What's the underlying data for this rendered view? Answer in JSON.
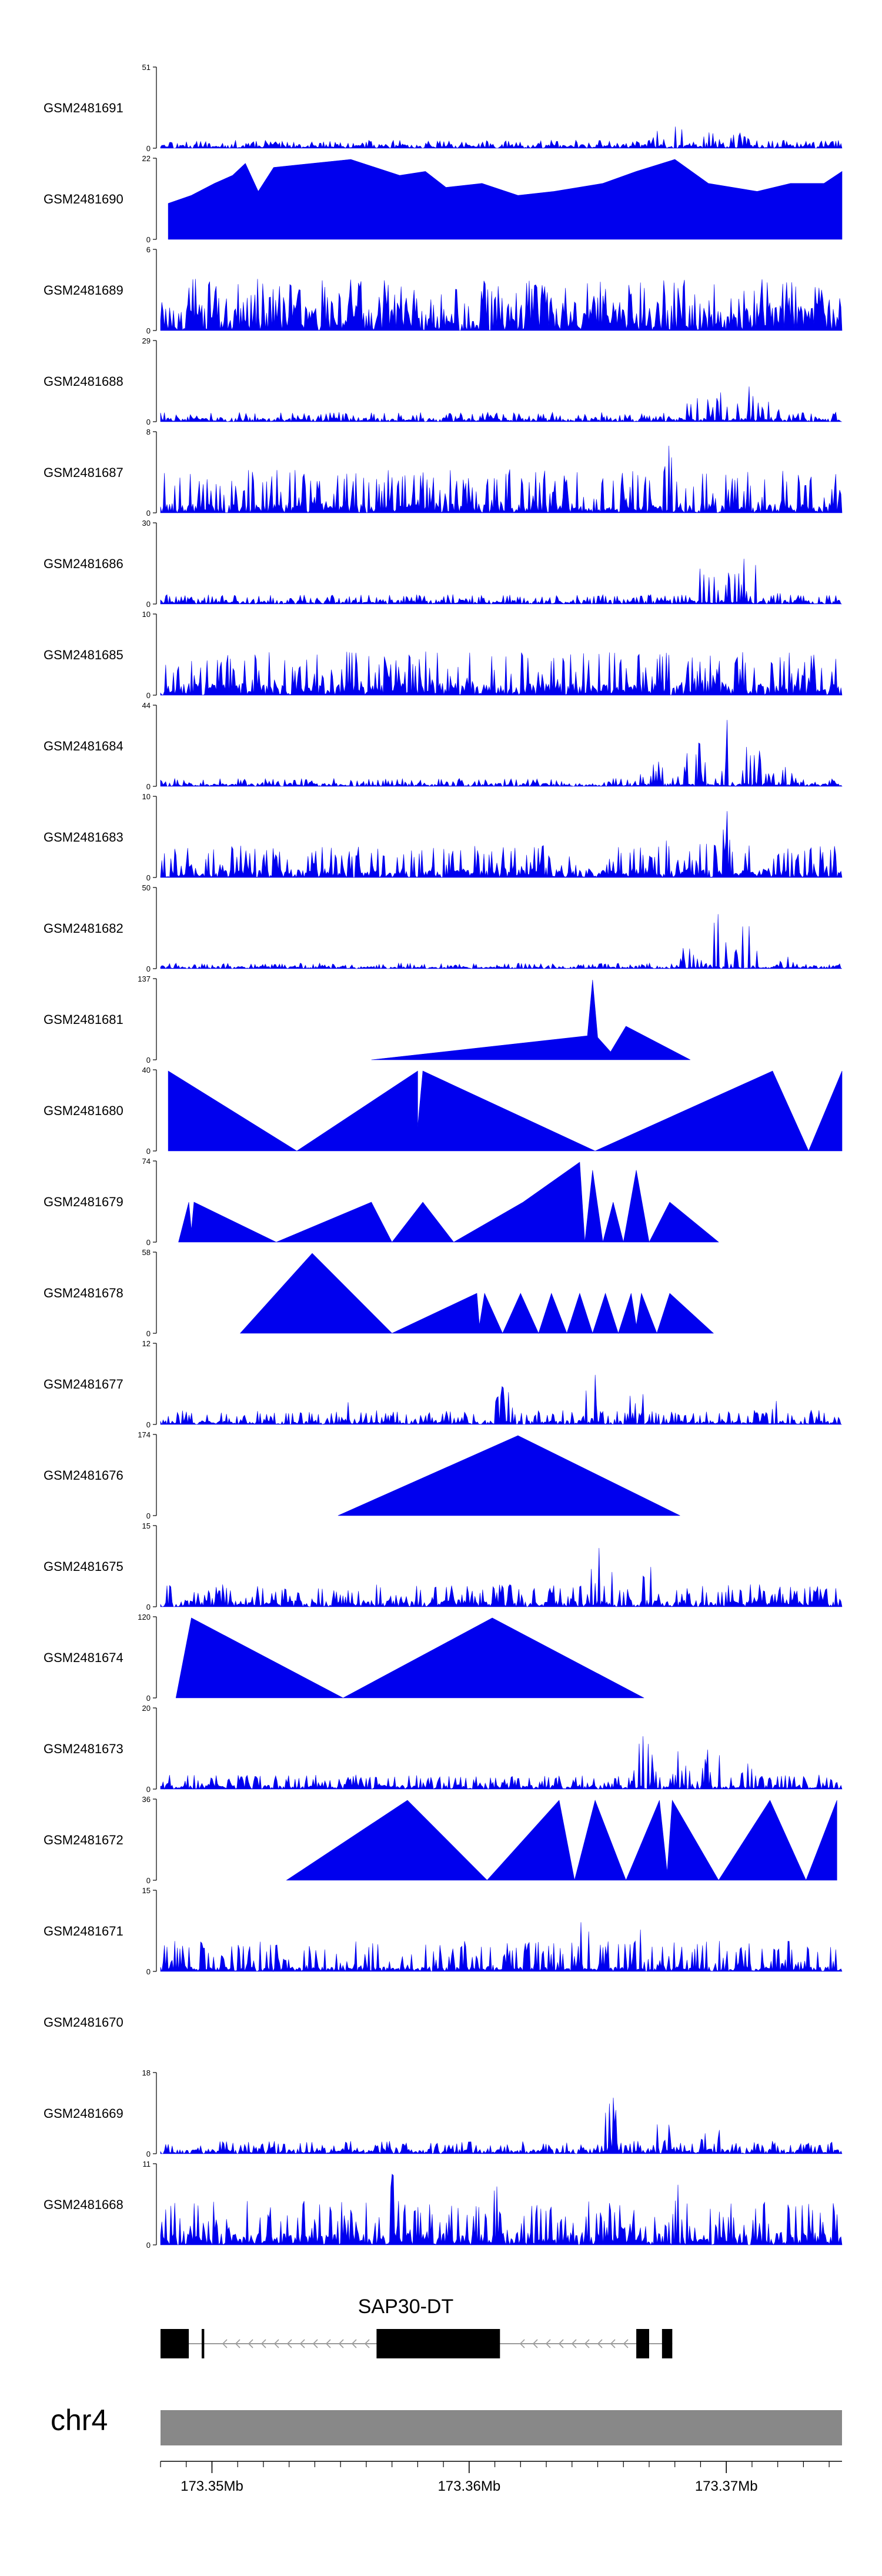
{
  "chart_data": {
    "type": "area",
    "title": "",
    "chromosome": "chr4",
    "region_start": 173.348,
    "region_end": 173.3745,
    "xlim": [
      173.348,
      173.3745
    ],
    "x_unit": "Mb",
    "x_ticks": [
      {
        "value": 173.35,
        "label": "173.35Mb"
      },
      {
        "value": 173.36,
        "label": "173.36Mb"
      },
      {
        "value": 173.37,
        "label": "173.37Mb"
      }
    ],
    "tracks": [
      {
        "name": "GSM2481691",
        "ymax": 51,
        "ymin_label": "0",
        "ymax_label": "51",
        "style": "dense",
        "base": 0.05,
        "noise": 0.1,
        "hotspots": [
          [
            173.3674,
            1.0,
            0.00012
          ],
          [
            173.3682,
            0.4,
            0.0003
          ],
          [
            173.3695,
            0.25,
            0.0004
          ],
          [
            173.3705,
            0.2,
            0.0005
          ]
        ],
        "seed": 11
      },
      {
        "name": "GSM2481690",
        "ymax": 22,
        "ymin_label": "0",
        "ymax_label": "22",
        "style": "triangles",
        "peaks": [
          [
            173.3483,
            0.45
          ],
          [
            173.3492,
            0.55
          ],
          [
            173.3501,
            0.7
          ],
          [
            173.3508,
            0.8
          ],
          [
            173.3513,
            0.95
          ],
          [
            173.3518,
            0.6
          ],
          [
            173.3524,
            0.9
          ],
          [
            173.3554,
            1.0
          ],
          [
            173.3573,
            0.8
          ],
          [
            173.3583,
            0.85
          ],
          [
            173.3591,
            0.65
          ],
          [
            173.3605,
            0.7
          ],
          [
            173.3619,
            0.55
          ],
          [
            173.3633,
            0.6
          ],
          [
            173.3652,
            0.7
          ],
          [
            173.3665,
            0.85
          ],
          [
            173.368,
            1.0
          ],
          [
            173.3693,
            0.7
          ],
          [
            173.3712,
            0.6
          ],
          [
            173.3725,
            0.7
          ],
          [
            173.3738,
            0.7
          ],
          [
            173.3745,
            0.85
          ]
        ]
      },
      {
        "name": "GSM2481689",
        "ymax": 6,
        "ymin_label": "0",
        "ymax_label": "6",
        "style": "dense",
        "base": 0.35,
        "noise": 0.65,
        "hotspots": [],
        "seed": 23
      },
      {
        "name": "GSM2481688",
        "ymax": 29,
        "ymin_label": "0",
        "ymax_label": "29",
        "style": "dense",
        "base": 0.05,
        "noise": 0.12,
        "hotspots": [
          [
            173.3689,
            0.45,
            0.0004
          ],
          [
            173.3698,
            0.95,
            0.0002
          ],
          [
            173.3707,
            0.6,
            0.0004
          ],
          [
            173.3716,
            0.3,
            0.0004
          ]
        ],
        "seed": 31
      },
      {
        "name": "GSM2481687",
        "ymax": 8,
        "ymin_label": "0",
        "ymax_label": "8",
        "style": "dense",
        "base": 0.12,
        "noise": 0.55,
        "hotspots": [
          [
            173.3678,
            0.9,
            0.0002
          ],
          [
            173.3698,
            0.6,
            0.0004
          ]
        ],
        "seed": 37
      },
      {
        "name": "GSM2481686",
        "ymax": 30,
        "ymin_label": "0",
        "ymax_label": "30",
        "style": "dense",
        "base": 0.05,
        "noise": 0.12,
        "hotspots": [
          [
            173.3692,
            0.55,
            0.0004
          ],
          [
            173.3701,
            0.95,
            0.0002
          ],
          [
            173.3708,
            0.7,
            0.0004
          ],
          [
            173.3717,
            0.25,
            0.0004
          ]
        ],
        "seed": 41
      },
      {
        "name": "GSM2481685",
        "ymax": 10,
        "ymin_label": "0",
        "ymax_label": "10",
        "style": "dense",
        "base": 0.15,
        "noise": 0.55,
        "hotspots": [
          [
            173.3675,
            0.6,
            0.0006
          ],
          [
            173.37,
            0.5,
            0.0008
          ]
        ],
        "seed": 43
      },
      {
        "name": "GSM2481684",
        "ymax": 44,
        "ymin_label": "0",
        "ymax_label": "44",
        "style": "dense",
        "base": 0.04,
        "noise": 0.1,
        "hotspots": [
          [
            173.3672,
            0.35,
            0.0005
          ],
          [
            173.3688,
            0.6,
            0.0004
          ],
          [
            173.37,
            1.0,
            0.00015
          ],
          [
            173.371,
            0.55,
            0.0005
          ],
          [
            173.3722,
            0.25,
            0.0004
          ]
        ],
        "seed": 47
      },
      {
        "name": "GSM2481683",
        "ymax": 10,
        "ymin_label": "0",
        "ymax_label": "10",
        "style": "dense",
        "base": 0.1,
        "noise": 0.4,
        "hotspots": [
          [
            173.3676,
            0.55,
            0.0004
          ],
          [
            173.3693,
            0.75,
            0.0005
          ],
          [
            173.37,
            0.95,
            0.0002
          ],
          [
            173.3715,
            0.6,
            0.0005
          ]
        ],
        "seed": 53
      },
      {
        "name": "GSM2481682",
        "ymax": 50,
        "ymin_label": "0",
        "ymax_label": "50",
        "style": "dense",
        "base": 0.03,
        "noise": 0.07,
        "hotspots": [
          [
            173.3685,
            0.3,
            0.0004
          ],
          [
            173.3697,
            0.95,
            0.0002
          ],
          [
            173.3708,
            0.7,
            0.0003
          ],
          [
            173.3722,
            0.2,
            0.0004
          ]
        ],
        "seed": 59
      },
      {
        "name": "GSM2481681",
        "ymax": 137,
        "ymin_label": "0",
        "ymax_label": "137",
        "style": "triangles",
        "peaks": [
          [
            173.3562,
            0.0
          ],
          [
            173.3646,
            0.3
          ],
          [
            173.3648,
            1.0
          ],
          [
            173.365,
            0.28
          ],
          [
            173.3655,
            0.1
          ],
          [
            173.3661,
            0.42
          ],
          [
            173.3686,
            0.0
          ]
        ]
      },
      {
        "name": "GSM2481680",
        "ymax": 40,
        "ymin_label": "0",
        "ymax_label": "40",
        "style": "triangles",
        "peaks": [
          [
            173.3483,
            1.0
          ],
          [
            173.3533,
            0.0
          ],
          [
            173.358,
            1.0
          ],
          [
            173.358,
            0.3
          ],
          [
            173.3582,
            1.0
          ],
          [
            173.3649,
            0.0
          ],
          [
            173.3718,
            1.0
          ],
          [
            173.3732,
            0.0
          ],
          [
            173.3745,
            1.0
          ]
        ]
      },
      {
        "name": "GSM2481679",
        "ymax": 74,
        "ymin_label": "0",
        "ymax_label": "74",
        "style": "triangles",
        "peaks": [
          [
            173.3487,
            0.0
          ],
          [
            173.3491,
            0.5
          ],
          [
            173.3492,
            0.15
          ],
          [
            173.3493,
            0.5
          ],
          [
            173.3525,
            0.0
          ],
          [
            173.3562,
            0.5
          ],
          [
            173.357,
            0.0
          ],
          [
            173.3582,
            0.5
          ],
          [
            173.3594,
            0.0
          ],
          [
            173.3621,
            0.5
          ],
          [
            173.3643,
            1.0
          ],
          [
            173.3645,
            0.0
          ],
          [
            173.3648,
            0.9
          ],
          [
            173.3652,
            0.0
          ],
          [
            173.3656,
            0.5
          ],
          [
            173.366,
            0.0
          ],
          [
            173.3665,
            0.9
          ],
          [
            173.367,
            0.0
          ],
          [
            173.3678,
            0.5
          ],
          [
            173.3697,
            0.0
          ]
        ]
      },
      {
        "name": "GSM2481678",
        "ymax": 58,
        "ymin_label": "0",
        "ymax_label": "58",
        "style": "triangles",
        "peaks": [
          [
            173.3511,
            0.0
          ],
          [
            173.3539,
            1.0
          ],
          [
            173.357,
            0.0
          ],
          [
            173.3603,
            0.5
          ],
          [
            173.3604,
            0.1
          ],
          [
            173.3606,
            0.5
          ],
          [
            173.3613,
            0.0
          ],
          [
            173.362,
            0.5
          ],
          [
            173.3627,
            0.0
          ],
          [
            173.3632,
            0.5
          ],
          [
            173.3638,
            0.0
          ],
          [
            173.3643,
            0.5
          ],
          [
            173.3648,
            0.0
          ],
          [
            173.3653,
            0.5
          ],
          [
            173.3658,
            0.0
          ],
          [
            173.3663,
            0.5
          ],
          [
            173.3665,
            0.1
          ],
          [
            173.3667,
            0.5
          ],
          [
            173.3673,
            0.0
          ],
          [
            173.3678,
            0.5
          ],
          [
            173.3695,
            0.0
          ]
        ]
      },
      {
        "name": "GSM2481677",
        "ymax": 12,
        "ymin_label": "0",
        "ymax_label": "12",
        "style": "dense",
        "base": 0.05,
        "noise": 0.18,
        "hotspots": [
          [
            173.3552,
            0.3,
            0.0003
          ],
          [
            173.3613,
            0.55,
            0.0003
          ],
          [
            173.3648,
            1.0,
            0.0002
          ],
          [
            173.3665,
            0.5,
            0.0004
          ],
          [
            173.372,
            0.3,
            0.0003
          ]
        ],
        "seed": 61
      },
      {
        "name": "GSM2481676",
        "ymax": 174,
        "ymin_label": "0",
        "ymax_label": "174",
        "style": "triangles",
        "peaks": [
          [
            173.3549,
            0.0
          ],
          [
            173.3619,
            1.0
          ],
          [
            173.3682,
            0.0
          ]
        ]
      },
      {
        "name": "GSM2481675",
        "ymax": 15,
        "ymin_label": "0",
        "ymax_label": "15",
        "style": "dense",
        "base": 0.08,
        "noise": 0.28,
        "hotspots": [
          [
            173.3649,
            0.95,
            0.0003
          ],
          [
            173.3655,
            0.6,
            0.0004
          ],
          [
            173.367,
            0.55,
            0.0003
          ],
          [
            173.369,
            0.3,
            0.0004
          ]
        ],
        "seed": 67
      },
      {
        "name": "GSM2481674",
        "ymax": 120,
        "ymin_label": "0",
        "ymax_label": "120",
        "style": "triangles",
        "peaks": [
          [
            173.3486,
            0.0
          ],
          [
            173.3492,
            1.0
          ],
          [
            173.3551,
            0.0
          ],
          [
            173.3609,
            1.0
          ],
          [
            173.3668,
            0.0
          ]
        ]
      },
      {
        "name": "GSM2481673",
        "ymax": 20,
        "ymin_label": "0",
        "ymax_label": "20",
        "style": "dense",
        "base": 0.05,
        "noise": 0.18,
        "hotspots": [
          [
            173.3668,
            0.9,
            0.0003
          ],
          [
            173.368,
            0.8,
            0.0004
          ],
          [
            173.3695,
            0.6,
            0.0004
          ],
          [
            173.371,
            0.35,
            0.0004
          ]
        ],
        "seed": 71
      },
      {
        "name": "GSM2481672",
        "ymax": 36,
        "ymin_label": "0",
        "ymax_label": "36",
        "style": "triangles",
        "peaks": [
          [
            173.3529,
            0.0
          ],
          [
            173.3576,
            1.0
          ],
          [
            173.3607,
            0.0
          ],
          [
            173.3635,
            1.0
          ],
          [
            173.3641,
            0.0
          ],
          [
            173.3649,
            1.0
          ],
          [
            173.3661,
            0.0
          ],
          [
            173.3674,
            1.0
          ],
          [
            173.3677,
            0.1
          ],
          [
            173.3679,
            1.0
          ],
          [
            173.3697,
            0.0
          ],
          [
            173.3717,
            1.0
          ],
          [
            173.3731,
            0.0
          ],
          [
            173.3743,
            1.0
          ]
        ]
      },
      {
        "name": "GSM2481671",
        "ymax": 15,
        "ymin_label": "0",
        "ymax_label": "15",
        "style": "dense",
        "base": 0.06,
        "noise": 0.38,
        "hotspots": [
          [
            173.3645,
            0.95,
            0.0002
          ],
          [
            173.3665,
            0.6,
            0.0004
          ],
          [
            173.3745,
            0.8,
            0.0002
          ]
        ],
        "seed": 73
      },
      {
        "name": "GSM2481670",
        "ymax": null,
        "ymin_label": "",
        "ymax_label": "",
        "style": "empty"
      },
      {
        "name": "GSM2481669",
        "ymax": 18,
        "ymin_label": "0",
        "ymax_label": "18",
        "style": "dense",
        "base": 0.06,
        "noise": 0.16,
        "hotspots": [
          [
            173.3655,
            0.95,
            0.0002
          ],
          [
            173.3675,
            0.55,
            0.0004
          ],
          [
            173.3695,
            0.4,
            0.0004
          ]
        ],
        "seed": 79
      },
      {
        "name": "GSM2481668",
        "ymax": 11,
        "ymin_label": "0",
        "ymax_label": "11",
        "style": "dense",
        "base": 0.15,
        "noise": 0.55,
        "hotspots": [
          [
            173.357,
            0.9,
            0.0004
          ],
          [
            173.361,
            0.8,
            0.0004
          ],
          [
            173.368,
            0.8,
            0.0004
          ]
        ],
        "seed": 83
      }
    ],
    "gene": {
      "name": "SAP30-DT",
      "strand": "-",
      "exons": [
        [
          173.348,
          173.3491
        ],
        [
          173.3496,
          173.3497
        ],
        [
          173.3564,
          173.3612
        ],
        [
          173.3665,
          173.367
        ],
        [
          173.3675,
          173.3679
        ]
      ]
    }
  }
}
